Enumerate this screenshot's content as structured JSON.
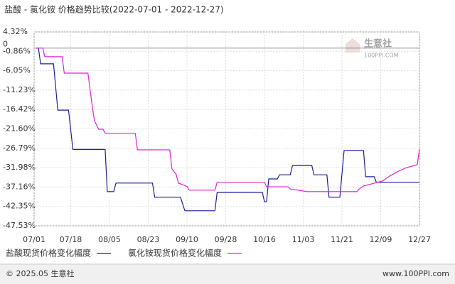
{
  "chart_data": {
    "type": "line",
    "title": "盐酸 - 氯化铵 价格趋势比较(2022-07-01 - 2022-12-27)",
    "xlim": [
      "07/01",
      "12/27"
    ],
    "xticks": [
      "07/01",
      "07/18",
      "08/05",
      "08/23",
      "09/10",
      "09/28",
      "10/16",
      "11/03",
      "11/21",
      "12/09",
      "12/27"
    ],
    "ylim": [
      -47.53,
      4.32
    ],
    "yticks": [
      {
        "value": 4.32,
        "label": "4.32%"
      },
      {
        "value": -0.86,
        "label": "-0.86%"
      },
      {
        "value": -6.05,
        "label": "-6.05%"
      },
      {
        "value": -11.23,
        "label": "-11.23%"
      },
      {
        "value": -16.42,
        "label": "-16.42%"
      },
      {
        "value": -21.6,
        "label": "-21.60%"
      },
      {
        "value": -26.79,
        "label": "-26.79%"
      },
      {
        "value": -31.98,
        "label": "-31.98%"
      },
      {
        "value": -37.16,
        "label": "-37.16%"
      },
      {
        "value": -42.35,
        "label": "-42.35%"
      },
      {
        "value": -47.53,
        "label": "-47.53%"
      }
    ],
    "zero_label": 0,
    "grid": true,
    "series": [
      {
        "name": "盐酸现货价格变化幅度",
        "color": "#1c1ca0",
        "x": [
          "07/02",
          "07/03",
          "07/04",
          "07/10",
          "07/12",
          "07/17",
          "07/19",
          "08/03",
          "08/04",
          "08/07",
          "08/08",
          "08/25",
          "08/26",
          "09/07",
          "09/09",
          "09/23",
          "09/24",
          "10/15",
          "10/16",
          "10/17",
          "10/18",
          "10/22",
          "10/23",
          "10/28",
          "10/29",
          "11/07",
          "11/08",
          "11/14",
          "11/15",
          "11/20",
          "11/22",
          "12/01",
          "12/02",
          "12/06",
          "12/07",
          "12/27"
        ],
        "values": [
          0,
          0,
          -4.2,
          -4.2,
          -16.6,
          -16.6,
          -27.1,
          -27.1,
          -38.4,
          -38.4,
          -36.1,
          -36.1,
          -39.9,
          -39.9,
          -43.5,
          -43.5,
          -38.6,
          -38.6,
          -41.1,
          -41.1,
          -35.0,
          -35.0,
          -33.9,
          -33.9,
          -31.4,
          -31.4,
          -33.9,
          -33.9,
          -39.9,
          -39.9,
          -27.4,
          -27.4,
          -34.4,
          -34.4,
          -35.9,
          -35.9
        ]
      },
      {
        "name": "氯化铵现货价格变化幅度",
        "color": "#e020d8",
        "x": [
          "07/02",
          "07/05",
          "07/06",
          "07/14",
          "07/15",
          "07/26",
          "07/28",
          "07/29",
          "07/31",
          "08/02",
          "08/03",
          "08/17",
          "08/18",
          "09/02",
          "09/03",
          "09/05",
          "09/06",
          "09/10",
          "09/11",
          "09/23",
          "09/24",
          "10/16",
          "10/17",
          "10/27",
          "10/28",
          "11/05",
          "11/28",
          "11/29",
          "12/01",
          "12/10",
          "12/13",
          "12/17",
          "12/21",
          "12/26",
          "12/27"
        ],
        "values": [
          0,
          0,
          -2.3,
          -2.3,
          -6.7,
          -6.7,
          -15.6,
          -19.4,
          -21.7,
          -21.7,
          -22.8,
          -22.8,
          -27.2,
          -27.2,
          -32.3,
          -33.8,
          -36.1,
          -37.0,
          -38.0,
          -38.0,
          -35.9,
          -35.9,
          -37.1,
          -37.1,
          -37.7,
          -38.4,
          -38.4,
          -37.7,
          -36.9,
          -35.5,
          -34.3,
          -33.0,
          -32.0,
          -31.2,
          -27.0
        ]
      }
    ]
  },
  "watermark": {
    "brand": "生意社",
    "site": "100PPI.COM"
  },
  "footer": {
    "copyright": "© 2025.05 生意社",
    "site": "www.100PPI.com"
  }
}
